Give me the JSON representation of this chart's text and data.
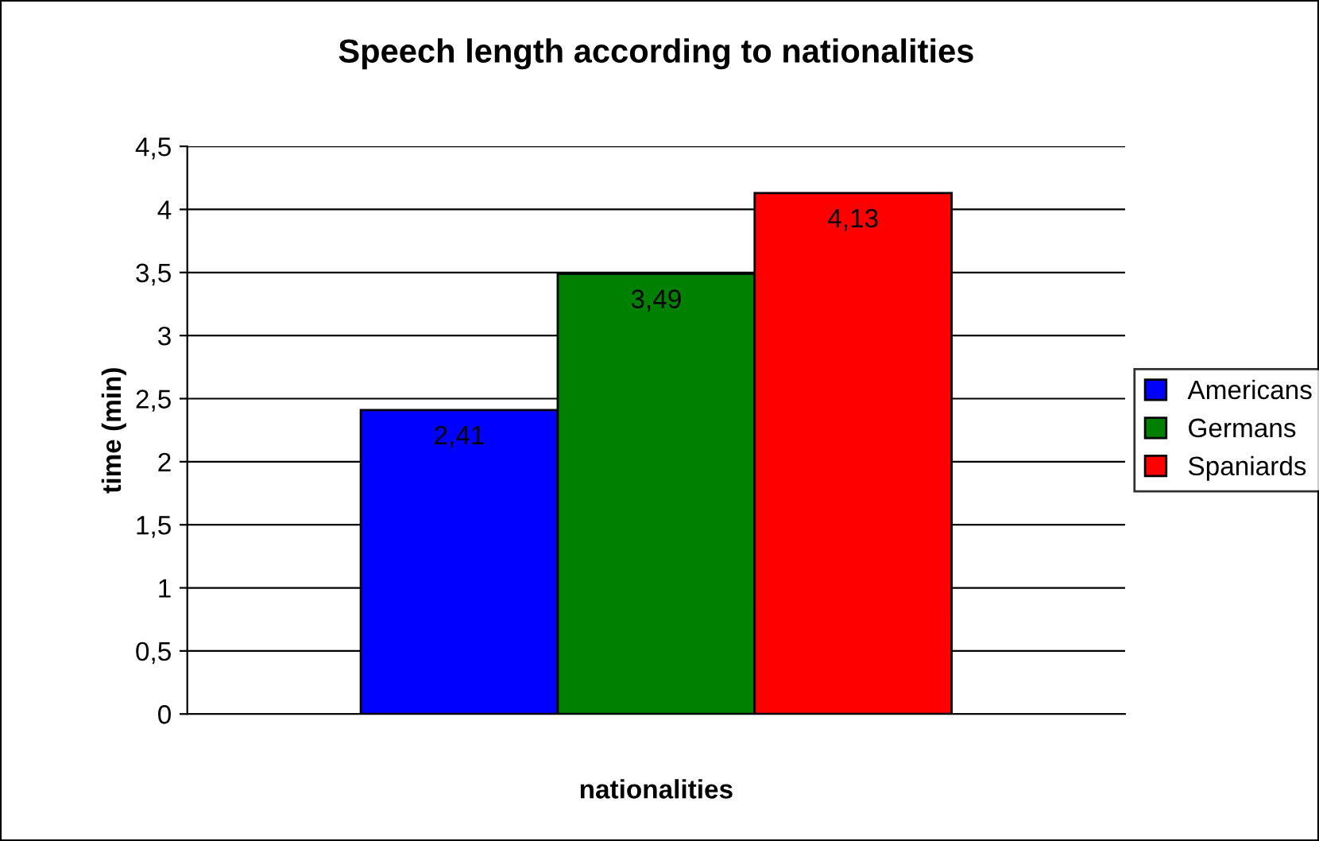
{
  "chart_data": {
    "type": "bar",
    "title": "Speech length according to nationalities",
    "xlabel": "nationalities",
    "ylabel": "time (min)",
    "categories": [
      null
    ],
    "series": [
      {
        "name": "Americans",
        "color": "#0000ff",
        "values": [
          2.41
        ],
        "value_labels": [
          "2,41"
        ]
      },
      {
        "name": "Germans",
        "color": "#008000",
        "values": [
          3.49
        ],
        "value_labels": [
          "3,49"
        ]
      },
      {
        "name": "Spaniards",
        "color": "#ff0000",
        "values": [
          4.13
        ],
        "value_labels": [
          "4,13"
        ]
      }
    ],
    "ylim": [
      0,
      4.5
    ],
    "yticks": [
      0,
      {
        "value": 0.5,
        "label": "0,5"
      },
      1,
      {
        "value": 1.5,
        "label": "1,5"
      },
      2,
      {
        "value": 2.5,
        "label": "2,5"
      },
      3,
      {
        "value": 3.5,
        "label": "3,5"
      },
      4,
      {
        "value": 4.5,
        "label": "4,5"
      }
    ],
    "grid": "y",
    "legend": "right"
  }
}
